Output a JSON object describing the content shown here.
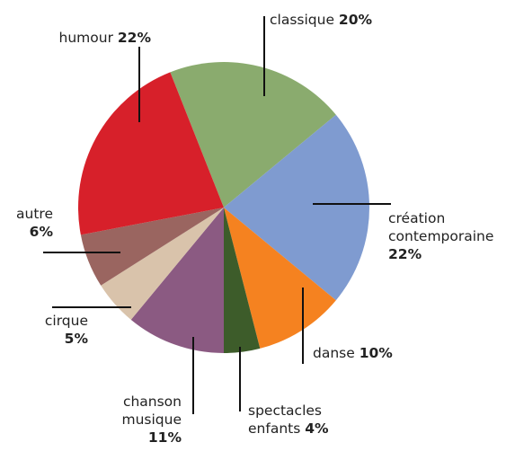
{
  "chart_data": {
    "type": "pie",
    "categories": [
      "classique",
      "création contemporaine",
      "danse",
      "spectacles enfants",
      "chanson musique",
      "cirque",
      "autre",
      "humour"
    ],
    "values": [
      20,
      22,
      10,
      4,
      11,
      5,
      6,
      22
    ],
    "value_labels": [
      "20%",
      "22%",
      "10%",
      "4%",
      "11%",
      "5%",
      "6%",
      "22%"
    ],
    "colors": [
      "#8aab6e",
      "#7f9bd0",
      "#f58220",
      "#3d5c2a",
      "#8b5a82",
      "#d9c3ab",
      "#9a6560",
      "#d7202a"
    ]
  }
}
